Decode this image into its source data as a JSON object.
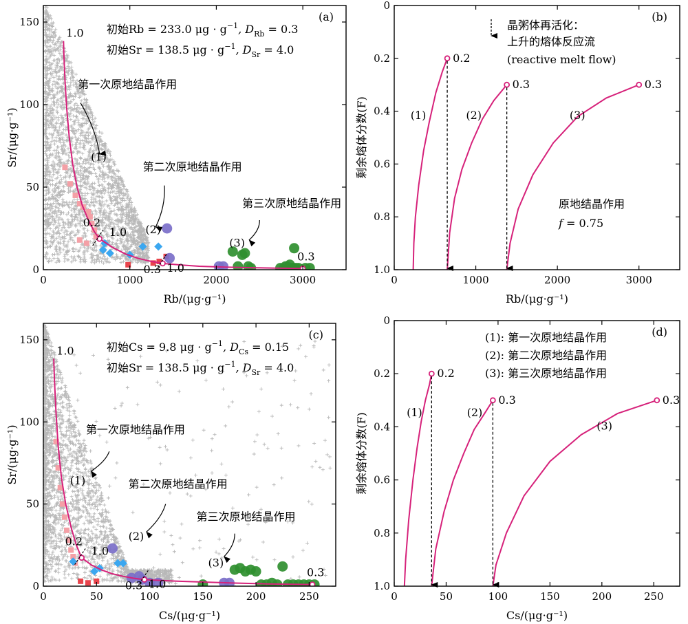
{
  "chart_data": [
    {
      "id": "a",
      "type": "scatter",
      "panel_label": "(a)",
      "xlabel": "Rb/(μg·g⁻¹)",
      "ylabel": "Sr/(μg·g⁻¹)",
      "xlim": [
        0,
        3500
      ],
      "ylim": [
        0,
        160
      ],
      "xticks": [
        "0",
        "1000",
        "2000",
        "3000"
      ],
      "yticks": [
        "0",
        "50",
        "100",
        "150"
      ],
      "xtick_values": [
        0,
        1000,
        2000,
        3000
      ],
      "ytick_values": [
        0,
        50,
        100,
        150
      ],
      "params": [
        "初始Rb = 233.0 μg·g⁻¹, D_Rb = 0.3",
        "初始Sr = 138.5 μg·g⁻¹, D_Sr = 4.0"
      ],
      "params_display": [
        {
          "pre": "初始Rb = 233.0 μg · g",
          "sup": "−1",
          "mid": ", D",
          "sub": "Rb",
          "post": " = 0.3"
        },
        {
          "pre": "初始Sr = 138.5 μg · g",
          "sup": "−1",
          "mid": ", D",
          "sub": "Sr",
          "post": " = 4.0"
        }
      ],
      "curve": [
        [
          233,
          138.5
        ],
        [
          238,
          130
        ],
        [
          250,
          115
        ],
        [
          270,
          98
        ],
        [
          300,
          80
        ],
        [
          340,
          64
        ],
        [
          390,
          50
        ],
        [
          450,
          39
        ],
        [
          520,
          30
        ],
        [
          590,
          23
        ],
        [
          650,
          18.7
        ],
        [
          800,
          13.5
        ],
        [
          950,
          9.5
        ],
        [
          1100,
          6.8
        ],
        [
          1250,
          5
        ],
        [
          1380,
          3.8
        ],
        [
          1600,
          2.8
        ],
        [
          1800,
          2.1
        ],
        [
          2100,
          1.6
        ],
        [
          2400,
          1.2
        ],
        [
          2700,
          0.9
        ],
        [
          3000,
          0.7
        ]
      ],
      "curve_labels": [
        {
          "x": 233,
          "y": 138.5,
          "text": "1.0"
        },
        {
          "x": 650,
          "y": 18.7,
          "text": "0.2"
        },
        {
          "x": 650,
          "y": 18.7,
          "text": "1.0"
        },
        {
          "x": 1380,
          "y": 3.8,
          "text": "0.3"
        },
        {
          "x": 1380,
          "y": 3.8,
          "text": "1.0"
        },
        {
          "x": 3000,
          "y": 0.7,
          "text": "0.3"
        }
      ],
      "stage_labels": [
        {
          "text": "第一次原地结晶作用",
          "num": "(1)",
          "tx": 400,
          "ty": 110,
          "nx": 550,
          "ny": 66,
          "ax": 430,
          "ay": 101,
          "bx": 650,
          "by": 70
        },
        {
          "text": "第二次原地结晶作用",
          "num": "(2)",
          "tx": 1150,
          "ty": 60,
          "nx": 1180,
          "ny": 22,
          "ax": 1400,
          "ay": 51,
          "bx": 1300,
          "by": 26
        },
        {
          "text": "第三次原地结晶作用",
          "num": "(3)",
          "tx": 2300,
          "ty": 38,
          "nx": 2150,
          "ny": 14,
          "ax": 2500,
          "ay": 30,
          "bx": 2380,
          "by": 18
        }
      ],
      "series": [
        {
          "name": "pink_squares",
          "color": "#f4a0a6",
          "marker": "square",
          "x": [
            250,
            310,
            370,
            420,
            460,
            520,
            540,
            560,
            590,
            610,
            500,
            420
          ],
          "y": [
            62,
            52,
            45,
            40,
            38,
            35,
            32,
            28,
            24,
            20,
            16,
            18
          ]
        },
        {
          "name": "red_squares",
          "color": "#e8444c",
          "marker": "square",
          "x": [
            980,
            1270,
            1340,
            1420
          ],
          "y": [
            3,
            4,
            5,
            8
          ]
        },
        {
          "name": "blue_diamonds",
          "color": "#3ba7f0",
          "marker": "diamond",
          "x": [
            690,
            710,
            770,
            1000,
            1150,
            1330
          ],
          "y": [
            12,
            16,
            10,
            9,
            14,
            14
          ]
        },
        {
          "name": "purple_circles",
          "color": "#7b6fc9",
          "marker": "circle",
          "x": [
            1430,
            1460,
            2030,
            2080,
            2780,
            2820,
            2850,
            2900
          ],
          "y": [
            25,
            7,
            2,
            2,
            1,
            2,
            1,
            1
          ]
        },
        {
          "name": "green_circles",
          "color": "#2f8f2f",
          "marker": "circle",
          "x": [
            2190,
            2250,
            2300,
            2330,
            2370,
            2400,
            2740,
            2800,
            2850,
            2880,
            2900,
            2920,
            2950,
            3030,
            3080
          ],
          "y": [
            11,
            2,
            9,
            10,
            2,
            1,
            1,
            2,
            3,
            1,
            13,
            1,
            1,
            1,
            1
          ]
        }
      ],
      "background": "gray_cross"
    },
    {
      "id": "b",
      "type": "line",
      "panel_label": "(b)",
      "xlabel": "Rb/(μg·g⁻¹)",
      "ylabel": "剩余熔体分数(F)",
      "xlim": [
        0,
        3500
      ],
      "ylim": [
        1.0,
        0
      ],
      "xticks": [
        "0",
        "1000",
        "2000",
        "3000"
      ],
      "yticks": [
        "0",
        "0.2",
        "0.4",
        "0.6",
        "0.8",
        "1.0"
      ],
      "xtick_values": [
        0,
        1000,
        2000,
        3000
      ],
      "ytick_values": [
        0,
        0.2,
        0.4,
        0.6,
        0.8,
        1.0
      ],
      "series": [
        {
          "name": "(1)",
          "x": [
            233,
            240,
            260,
            300,
            360,
            430,
            510,
            590,
            650
          ],
          "y": [
            1.0,
            0.9,
            0.8,
            0.68,
            0.55,
            0.44,
            0.33,
            0.25,
            0.2
          ],
          "end_label": "0.2",
          "label_x": 200,
          "label_y": 0.43
        },
        {
          "name": "(2)",
          "x": [
            650,
            680,
            740,
            830,
            950,
            1080,
            1220,
            1380
          ],
          "y": [
            1.0,
            0.86,
            0.73,
            0.62,
            0.52,
            0.43,
            0.36,
            0.3
          ],
          "end_label": "0.3",
          "label_x": 880,
          "label_y": 0.43
        },
        {
          "name": "(3)",
          "x": [
            1380,
            1420,
            1520,
            1700,
            1950,
            2250,
            2600,
            3000
          ],
          "y": [
            1.0,
            0.9,
            0.77,
            0.64,
            0.52,
            0.42,
            0.35,
            0.3
          ],
          "end_label": "0.3",
          "label_x": 2150,
          "label_y": 0.43
        }
      ],
      "arrows_down": [
        650,
        1380
      ],
      "annotations": {
        "line1": "晶粥体再活化：",
        "line2": "上升的熔体反应流",
        "line3": "(reactive melt flow)",
        "rule": "原地结晶作用",
        "f_label": "f",
        "f_value": " = 0.75"
      }
    },
    {
      "id": "c",
      "type": "scatter",
      "panel_label": "(c)",
      "xlabel": "Cs/(μg·g⁻¹)",
      "ylabel": "Sr/(μg·g⁻¹)",
      "xlim": [
        0,
        275
      ],
      "ylim": [
        0,
        160
      ],
      "xticks": [
        "0",
        "50",
        "100",
        "150",
        "200",
        "250"
      ],
      "yticks": [
        "0",
        "50",
        "100",
        "150"
      ],
      "xtick_values": [
        0,
        50,
        100,
        150,
        200,
        250
      ],
      "ytick_values": [
        0,
        50,
        100,
        150
      ],
      "params": [
        "初始Cs = 9.8 μg·g⁻¹, D_Cs = 0.15",
        "初始Sr = 138.5 μg·g⁻¹, D_Sr = 4.0"
      ],
      "params_display": [
        {
          "pre": "初始Cs = 9.8 μg · g",
          "sup": "−1",
          "mid": ", D",
          "sub": "Cs",
          "post": " = 0.15"
        },
        {
          "pre": "初始Sr = 138.5 μg · g",
          "sup": "−1",
          "mid": ", D",
          "sub": "Sr",
          "post": " = 4.0"
        }
      ],
      "curve": [
        [
          9.8,
          138.5
        ],
        [
          10.5,
          125
        ],
        [
          12,
          105
        ],
        [
          14,
          85
        ],
        [
          17,
          66
        ],
        [
          21,
          50
        ],
        [
          26,
          36
        ],
        [
          31,
          25
        ],
        [
          36,
          17.3
        ],
        [
          45,
          13
        ],
        [
          55,
          9.8
        ],
        [
          65,
          7.5
        ],
        [
          75,
          6
        ],
        [
          85,
          4.8
        ],
        [
          95,
          4
        ],
        [
          120,
          3.2
        ],
        [
          150,
          2.5
        ],
        [
          180,
          1.9
        ],
        [
          210,
          1.4
        ],
        [
          240,
          1.1
        ],
        [
          253,
          1
        ]
      ],
      "curve_labels": [
        {
          "x": 9.8,
          "y": 138.5,
          "text": "1.0"
        },
        {
          "x": 36,
          "y": 17.3,
          "text": "0.2"
        },
        {
          "x": 36,
          "y": 17.3,
          "text": "1.0"
        },
        {
          "x": 95,
          "y": 4,
          "text": "0.3"
        },
        {
          "x": 95,
          "y": 4,
          "text": "1.0"
        },
        {
          "x": 253,
          "y": 1,
          "text": "0.3"
        }
      ],
      "stage_labels": [
        {
          "text": "第一次原地结晶作用",
          "num": "(1)",
          "tx": 40,
          "ty": 93,
          "nx": 25,
          "ny": 62,
          "ax": 62,
          "ay": 82,
          "bx": 45,
          "by": 70
        },
        {
          "text": "第二次原地结晶作用",
          "num": "(2)",
          "tx": 80,
          "ty": 60,
          "nx": 80,
          "ny": 28,
          "ax": 115,
          "ay": 50,
          "bx": 97,
          "by": 33
        },
        {
          "text": "第三次原地结晶作用",
          "num": "(3)",
          "tx": 144,
          "ty": 40,
          "nx": 155,
          "ny": 12,
          "ax": 180,
          "ay": 32,
          "bx": 170,
          "by": 18
        }
      ],
      "series": [
        {
          "name": "pink_squares",
          "color": "#f4a0a6",
          "marker": "square",
          "x": [
            12,
            14,
            16,
            18,
            20,
            22,
            24,
            26,
            28,
            30
          ],
          "y": [
            88,
            72,
            60,
            50,
            42,
            34,
            28,
            22,
            18,
            14
          ]
        },
        {
          "name": "red_squares",
          "color": "#e8444c",
          "marker": "square",
          "x": [
            35,
            42,
            50
          ],
          "y": [
            3,
            2,
            3
          ]
        },
        {
          "name": "blue_diamonds",
          "color": "#3ba7f0",
          "marker": "diamond",
          "x": [
            28,
            48,
            53,
            70,
            75
          ],
          "y": [
            15,
            9,
            11,
            14,
            14
          ]
        },
        {
          "name": "purple_circles",
          "color": "#7b6fc9",
          "marker": "circle",
          "x": [
            65,
            83,
            90,
            93,
            100,
            108,
            170,
            175
          ],
          "y": [
            23,
            5,
            6,
            4,
            2,
            2,
            2,
            2
          ]
        },
        {
          "name": "green_circles",
          "color": "#2f8f2f",
          "marker": "circle",
          "x": [
            150,
            180,
            185,
            190,
            195,
            200,
            205,
            210,
            215,
            220,
            225,
            230,
            235,
            240,
            245,
            250,
            255
          ],
          "y": [
            1,
            10,
            11,
            9,
            10,
            9,
            1,
            1,
            2,
            1,
            12,
            1,
            1,
            1,
            1,
            1,
            1
          ]
        }
      ],
      "background": "gray_cross"
    },
    {
      "id": "d",
      "type": "line",
      "panel_label": "(d)",
      "xlabel": "Cs/(μg·g⁻¹)",
      "ylabel": "剩余熔体分数(F)",
      "xlim": [
        0,
        275
      ],
      "ylim": [
        1.0,
        0
      ],
      "xticks": [
        "0",
        "50",
        "100",
        "150",
        "200",
        "250"
      ],
      "yticks": [
        "0",
        "0.2",
        "0.4",
        "0.6",
        "0.8",
        "1.0"
      ],
      "xtick_values": [
        0,
        50,
        100,
        150,
        200,
        250
      ],
      "ytick_values": [
        0,
        0.2,
        0.4,
        0.6,
        0.8,
        1.0
      ],
      "series": [
        {
          "name": "(1)",
          "x": [
            9.8,
            11,
            14,
            18,
            22,
            26,
            30,
            34,
            36
          ],
          "y": [
            1.0,
            0.9,
            0.75,
            0.6,
            0.48,
            0.38,
            0.3,
            0.24,
            0.2
          ],
          "end_label": "0.2",
          "label_x": 12,
          "label_y": 0.36
        },
        {
          "name": "(2)",
          "x": [
            36,
            40,
            48,
            57,
            67,
            77,
            87,
            95
          ],
          "y": [
            1.0,
            0.86,
            0.72,
            0.6,
            0.5,
            0.41,
            0.35,
            0.3
          ],
          "end_label": "0.3",
          "label_x": 70,
          "label_y": 0.36
        },
        {
          "name": "(3)",
          "x": [
            95,
            98,
            108,
            125,
            150,
            180,
            215,
            253
          ],
          "y": [
            1.0,
            0.92,
            0.8,
            0.66,
            0.53,
            0.43,
            0.35,
            0.3
          ],
          "end_label": "0.3",
          "label_x": 195,
          "label_y": 0.41
        }
      ],
      "arrows_down": [
        36,
        95
      ],
      "legend": [
        "(1): 第一次原地结晶作用",
        "(2): 第二次原地结晶作用",
        "(3): 第三次原地结晶作用"
      ]
    }
  ]
}
